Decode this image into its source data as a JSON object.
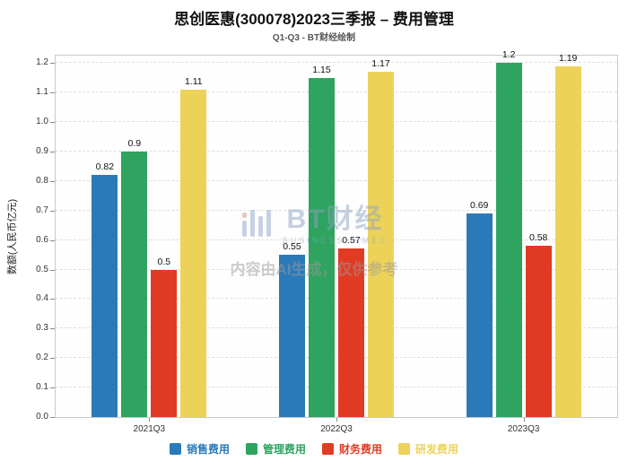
{
  "header": {
    "title": "思创医惠(300078)2023三季报 – 费用管理",
    "subtitle": "Q1-Q3 - BT财经绘制"
  },
  "watermark": {
    "brand_main": "BT财经",
    "brand_sub": "BUSINESS TIMES",
    "notice": "内容由AI生成，仅供参考"
  },
  "chart_data": {
    "type": "bar",
    "categories": [
      "2021Q3",
      "2022Q3",
      "2023Q3"
    ],
    "series": [
      {
        "key": "sales",
        "name": "销售费用",
        "color": "#2A7AB9",
        "values": [
          0.82,
          0.55,
          0.69
        ]
      },
      {
        "key": "management",
        "name": "管理费用",
        "color": "#2FA360",
        "values": [
          0.9,
          1.15,
          1.2
        ]
      },
      {
        "key": "finance",
        "name": "财务费用",
        "color": "#E23B23",
        "values": [
          0.5,
          0.57,
          0.58
        ]
      },
      {
        "key": "rd",
        "name": "研发费用",
        "color": "#EDD25A",
        "values": [
          1.11,
          1.17,
          1.19
        ]
      }
    ],
    "xlabel": "",
    "ylabel": "数额(人民币亿元)",
    "ylim": [
      0,
      1.225
    ],
    "yticks": [
      0.0,
      0.1,
      0.2,
      0.3,
      0.4,
      0.5,
      0.6,
      0.7,
      0.8,
      0.9,
      1.0,
      1.1,
      1.2
    ],
    "grid": true,
    "legend_position": "bottom"
  }
}
